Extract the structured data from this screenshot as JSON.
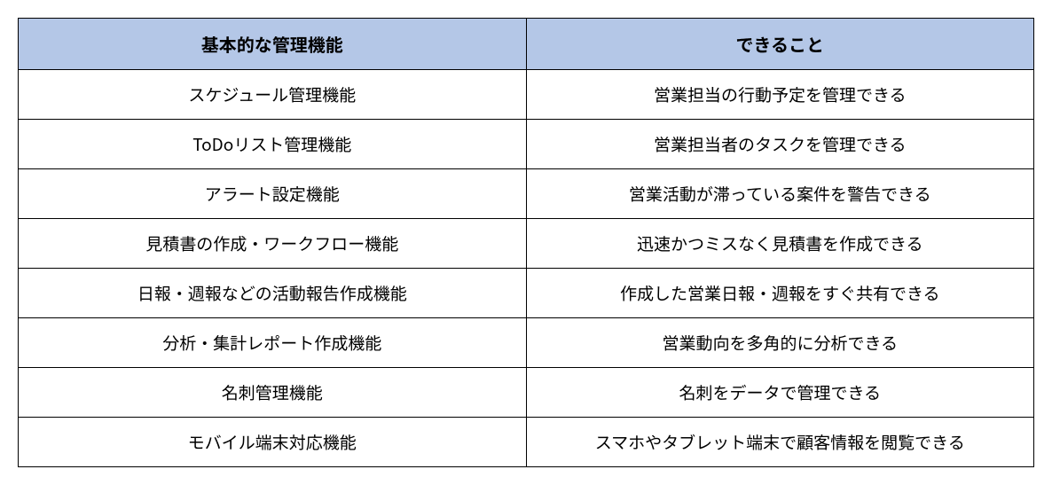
{
  "table": {
    "type": "table",
    "columns": [
      {
        "label": "基本的な管理機能",
        "width": "50%",
        "align": "center"
      },
      {
        "label": "できること",
        "width": "50%",
        "align": "center"
      }
    ],
    "rows": [
      [
        "スケジュール管理機能",
        "営業担当の行動予定を管理できる"
      ],
      [
        "ToDoリスト管理機能",
        "営業担当者のタスクを管理できる"
      ],
      [
        "アラート設定機能",
        "営業活動が滞っている案件を警告できる"
      ],
      [
        "見積書の作成・ワークフロー機能",
        "迅速かつミスなく見積書を作成できる"
      ],
      [
        "日報・週報などの活動報告作成機能",
        "作成した営業日報・週報をすぐ共有できる"
      ],
      [
        "分析・集計レポート作成機能",
        "営業動向を多角的に分析できる"
      ],
      [
        "名刺管理機能",
        "名刺をデータで管理できる"
      ],
      [
        "モバイル端末対応機能",
        "スマホやタブレット端末で顧客情報を閲覧できる"
      ]
    ],
    "header_background": "#b4c7e7",
    "header_text_color": "#000000",
    "header_fontsize": 20,
    "header_fontweight": "bold",
    "cell_background": "#ffffff",
    "cell_text_color": "#000000",
    "cell_fontsize": 19,
    "border_color": "#000000",
    "border_width": 1
  }
}
